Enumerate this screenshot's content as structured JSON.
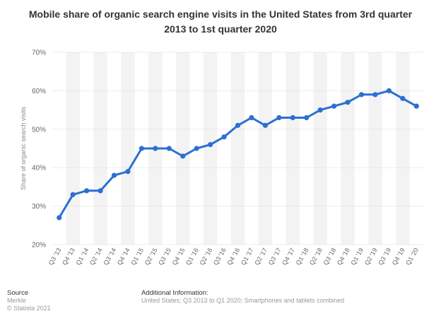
{
  "chart_data": {
    "type": "line",
    "title": "Mobile share of organic search engine visits in the United States from 3rd quarter 2013 to 1st quarter 2020",
    "ylabel": "Share of organic search visits",
    "xlabel": "",
    "ylim": [
      20,
      70
    ],
    "yticks": [
      20,
      30,
      40,
      50,
      60,
      70
    ],
    "ytick_suffix": "%",
    "grid": true,
    "line_color": "#2b6fd3",
    "categories": [
      "Q3 '13",
      "Q4 '13",
      "Q1 '14",
      "Q2 '14",
      "Q3 '14",
      "Q4 '14",
      "Q1 '15",
      "Q2 '15",
      "Q3 '15",
      "Q4 '15",
      "Q1 '16",
      "Q2 '16",
      "Q3 '16",
      "Q4 '16",
      "Q1 '17",
      "Q2 '17",
      "Q3 '17",
      "Q4 '17",
      "Q1 '18",
      "Q2 '18",
      "Q3 '18",
      "Q4 '18",
      "Q1 '19",
      "Q2 '19",
      "Q3 '19",
      "Q4 '19",
      "Q1 '20"
    ],
    "values": [
      27,
      33,
      34,
      34,
      38,
      39,
      45,
      45,
      45,
      43,
      45,
      46,
      48,
      51,
      53,
      51,
      53,
      53,
      53,
      55,
      56,
      57,
      59,
      59,
      60,
      58,
      56
    ]
  },
  "footer": {
    "source_label": "Source",
    "source_lines": [
      "Merkle",
      "© Statista 2021"
    ],
    "additional_label": "Additional Information:",
    "additional_text": "United States; Q3 2013 to Q1 2020; Smartphones and tablets combined"
  }
}
